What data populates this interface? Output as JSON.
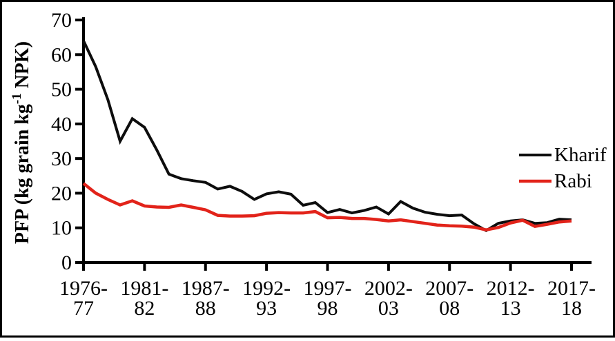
{
  "figure": {
    "ylabel_parts": {
      "pre": "PFP (kg grain kg",
      "sup": "-1",
      "post": " NPK)"
    },
    "colors": {
      "kharif": "#0d0d0d",
      "rabi": "#e2231a",
      "axis": "#000000",
      "background": "#ffffff"
    }
  },
  "chart_data": {
    "type": "line",
    "title": "",
    "xlabel": "",
    "ylabel": "PFP (kg grain kg-1 NPK)",
    "ylim": [
      0,
      70
    ],
    "y_tick_labels": [
      "0",
      "10",
      "20",
      "30",
      "40",
      "50",
      "60",
      "70"
    ],
    "x_tick_indices": [
      0,
      5,
      10,
      15,
      20,
      25,
      30,
      35,
      40
    ],
    "x_tick_labels": [
      [
        "1976-",
        "77"
      ],
      [
        "1981-",
        "82"
      ],
      [
        "1987-",
        "88"
      ],
      [
        "1992-",
        "93"
      ],
      [
        "1997-",
        "98"
      ],
      [
        "2002-",
        "03"
      ],
      [
        "2007-",
        "08"
      ],
      [
        "2012-",
        "13"
      ],
      [
        "2017-",
        "18"
      ]
    ],
    "x_range_label": "1976-77 to 2017-18",
    "grid": false,
    "legend_position": "right",
    "series": [
      {
        "name": "Kharif",
        "color": "#0d0d0d",
        "values": [
          64,
          56.5,
          47,
          35,
          41.5,
          39,
          32.5,
          25.5,
          24.2,
          23.6,
          23.1,
          21.2,
          22,
          20.5,
          18.2,
          19.8,
          20.4,
          19.7,
          16.5,
          17.3,
          14.4,
          15.3,
          14.3,
          15,
          16,
          14,
          17.6,
          15.7,
          14.5,
          13.9,
          13.5,
          13.7,
          11.2,
          9.2,
          11.3,
          12,
          12.3,
          11.3,
          11.5,
          12.5,
          12.3
        ]
      },
      {
        "name": "Rabi",
        "color": "#e2231a",
        "values": [
          22.8,
          20,
          18.2,
          16.6,
          17.8,
          16.3,
          16,
          15.9,
          16.6,
          15.9,
          15.2,
          13.6,
          13.4,
          13.4,
          13.5,
          14.2,
          14.4,
          14.3,
          14.3,
          14.7,
          12.9,
          13,
          12.7,
          12.7,
          12.4,
          12,
          12.3,
          11.8,
          11.3,
          10.8,
          10.6,
          10.5,
          10.2,
          9.4,
          10.1,
          11.4,
          12.2,
          10.4,
          11,
          11.7,
          12
        ]
      }
    ]
  }
}
